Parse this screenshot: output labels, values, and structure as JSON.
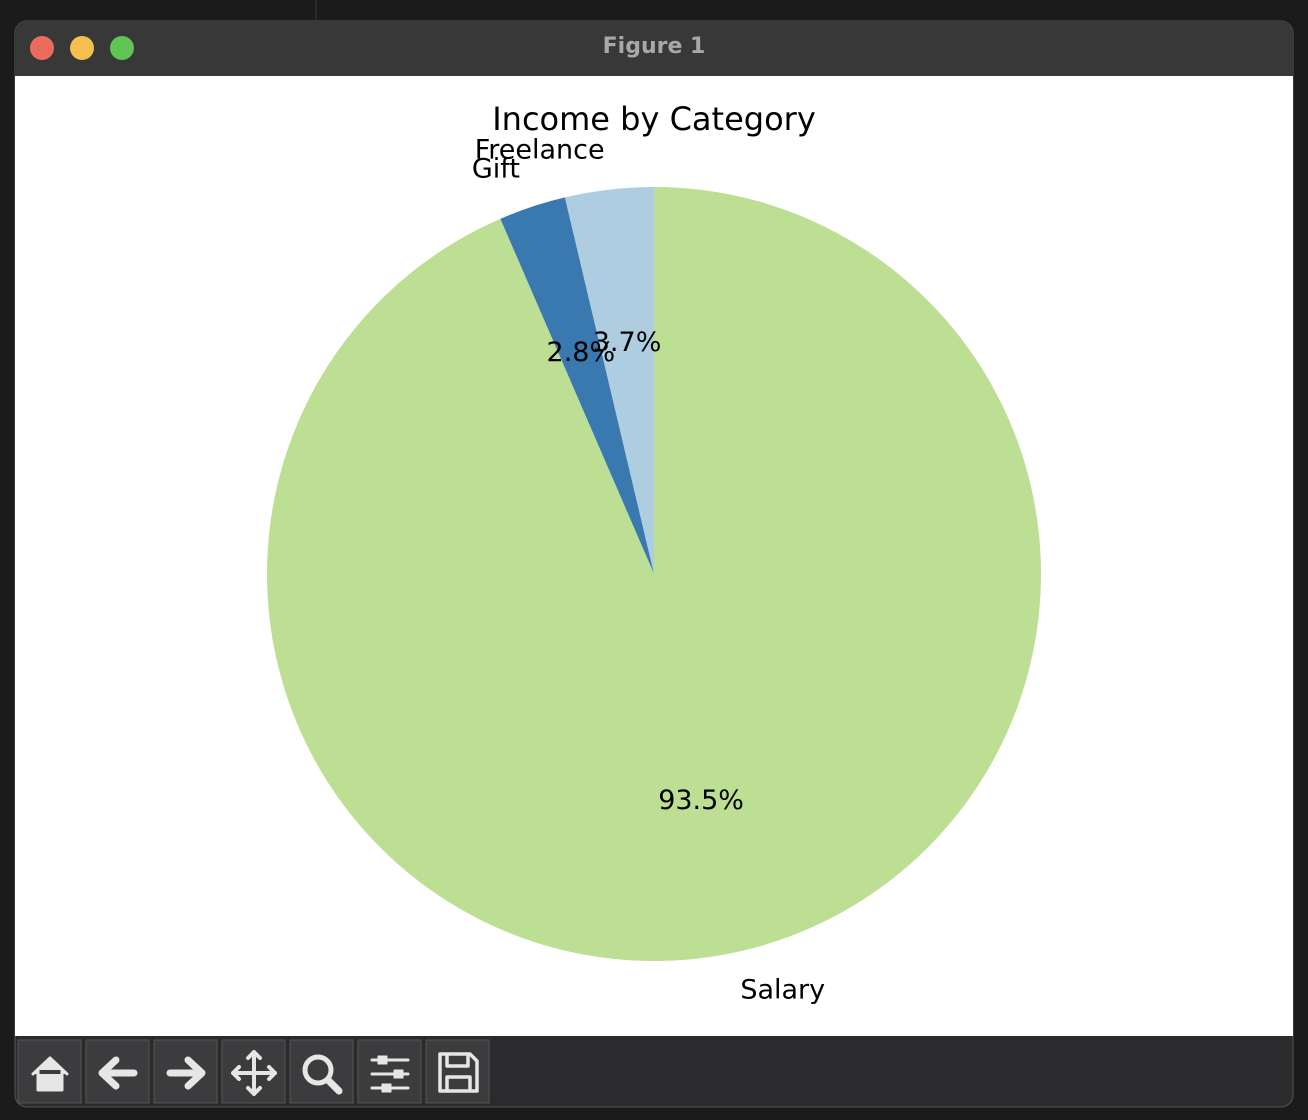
{
  "window": {
    "title": "Figure 1"
  },
  "chart_data": {
    "type": "pie",
    "title": "Income by Category",
    "categories": [
      "Freelance",
      "Gift",
      "Salary"
    ],
    "values": [
      3.7,
      2.8,
      93.5
    ],
    "value_labels": [
      "3.7%",
      "2.8%",
      "93.5%"
    ],
    "colors": [
      "#aecde1",
      "#3a78b0",
      "#bddf93"
    ],
    "start_angle": 90
  }
}
